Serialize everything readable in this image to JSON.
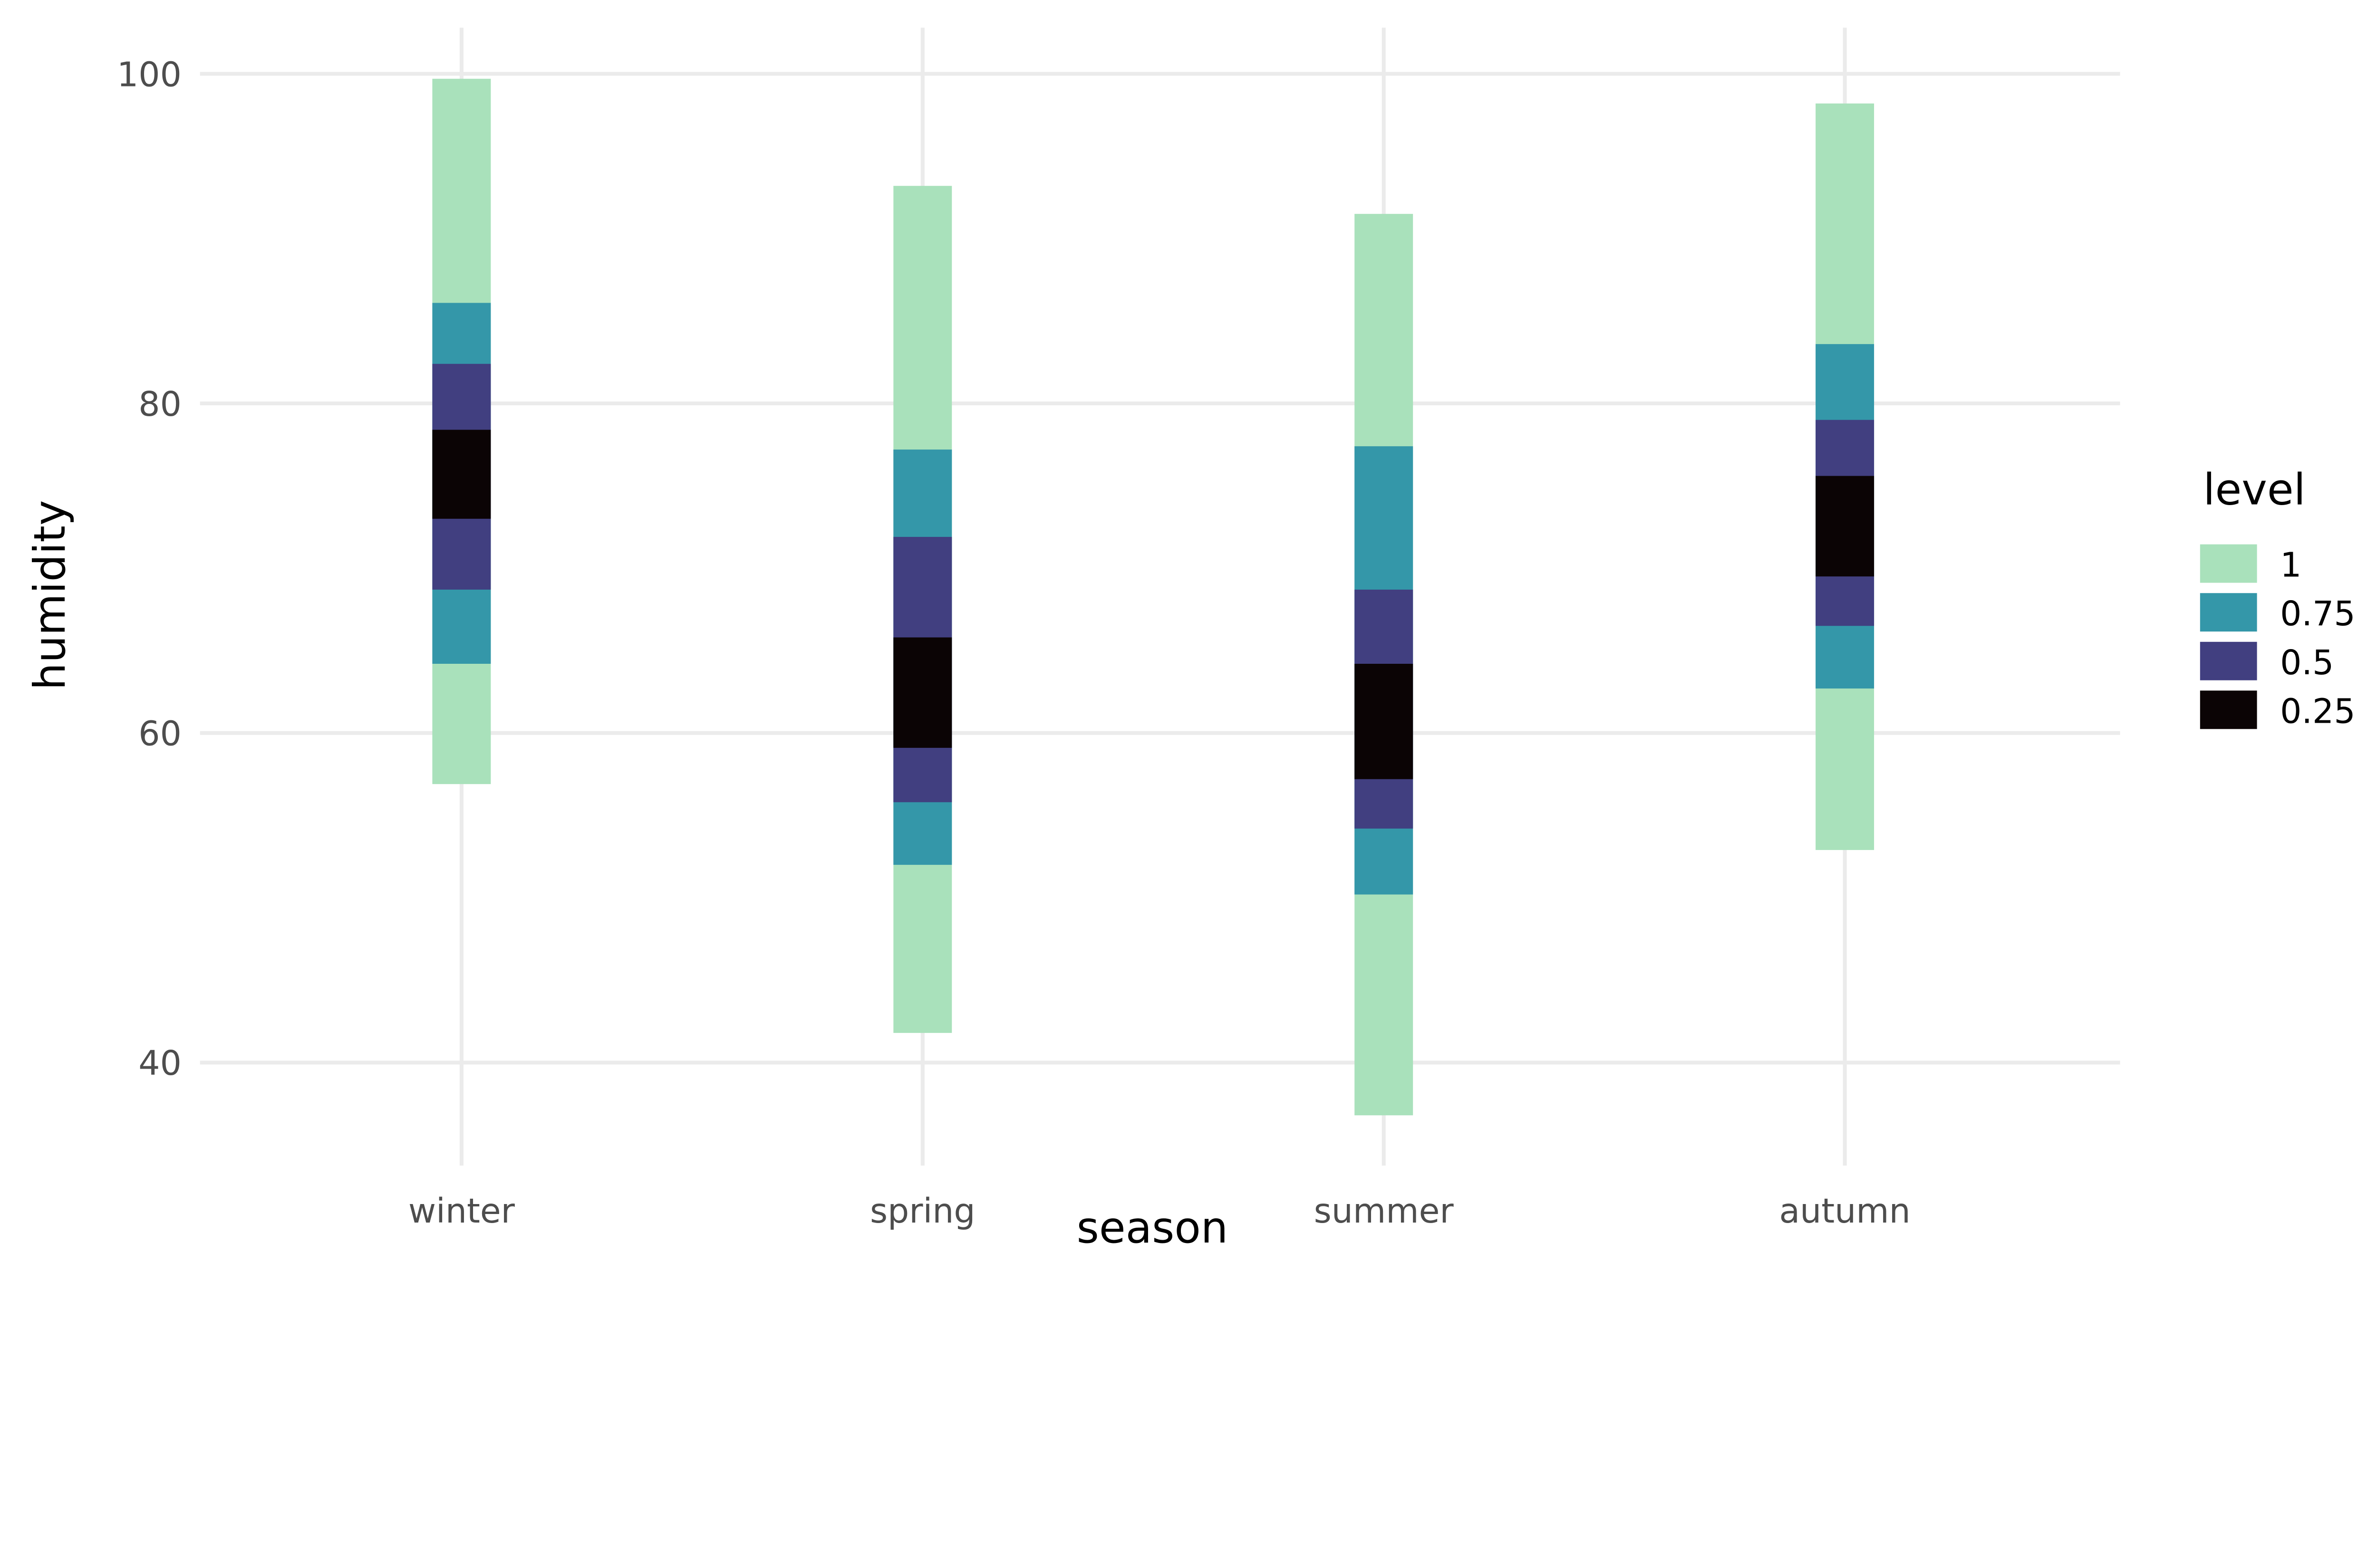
{
  "chart_data": {
    "type": "interval",
    "xlabel": "season",
    "ylabel": "humidity",
    "categories": [
      "winter",
      "spring",
      "summer",
      "autumn"
    ],
    "yticks": [
      40,
      60,
      80,
      100
    ],
    "ylim": [
      33.75,
      102.8
    ],
    "grid": true,
    "legend": {
      "title": "level",
      "position": "right",
      "entries": [
        {
          "label": "1",
          "color": "#a9e1bb"
        },
        {
          "label": "0.75",
          "color": "#3497a9"
        },
        {
          "label": "0.5",
          "color": "#413f80"
        },
        {
          "label": "0.25",
          "color": "#0b0405"
        }
      ]
    },
    "series": [
      {
        "level": "1",
        "intervals": [
          [
            56.9,
            99.7
          ],
          [
            41.8,
            93.2
          ],
          [
            36.8,
            91.5
          ],
          [
            52.9,
            98.2
          ]
        ]
      },
      {
        "level": "0.75",
        "intervals": [
          [
            64.2,
            86.1
          ],
          [
            52.0,
            77.2
          ],
          [
            50.2,
            77.4
          ],
          [
            62.7,
            83.6
          ]
        ]
      },
      {
        "level": "0.5",
        "intervals": [
          [
            68.7,
            82.4
          ],
          [
            55.8,
            71.9
          ],
          [
            54.2,
            68.7
          ],
          [
            66.5,
            79.0
          ]
        ]
      },
      {
        "level": "0.25",
        "intervals": [
          [
            73.0,
            78.4
          ],
          [
            59.1,
            65.8
          ],
          [
            57.2,
            64.2
          ],
          [
            69.5,
            75.6
          ]
        ]
      }
    ]
  }
}
